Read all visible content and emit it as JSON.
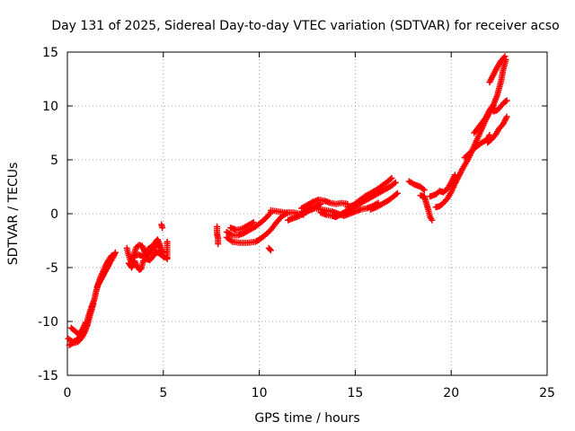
{
  "chart_data": {
    "type": "scatter",
    "title": "Day 131 of 2025, Sidereal Day-to-day VTEC variation (SDTVAR) for receiver acso",
    "xlabel": "GPS time / hours",
    "ylabel": "SDTVAR / TECUs",
    "xlim": [
      0,
      25
    ],
    "ylim": [
      -15,
      15
    ],
    "xticks": [
      0,
      5,
      10,
      15,
      20,
      25
    ],
    "yticks": [
      -15,
      -10,
      -5,
      0,
      5,
      10,
      15
    ],
    "grid": true,
    "marker": "plus",
    "color": "#ff0000",
    "series": [
      {
        "name": "SDTVAR",
        "segments": [
          [
            [
              0.05,
              -11.6
            ],
            [
              0.3,
              -11.9
            ],
            [
              0.5,
              -11.7
            ],
            [
              0.7,
              -11.3
            ],
            [
              0.85,
              -10.8
            ],
            [
              1.0,
              -10.2
            ],
            [
              1.1,
              -9.5
            ],
            [
              1.25,
              -8.7
            ],
            [
              1.4,
              -8.0
            ],
            [
              1.5,
              -7.2
            ],
            [
              1.6,
              -6.6
            ],
            [
              1.75,
              -6.1
            ],
            [
              1.9,
              -5.6
            ],
            [
              2.05,
              -5.1
            ],
            [
              2.2,
              -4.6
            ],
            [
              2.4,
              -4.0
            ],
            [
              2.5,
              -3.6
            ]
          ],
          [
            [
              0.1,
              -12.2
            ],
            [
              0.3,
              -12.0
            ],
            [
              0.55,
              -11.9
            ],
            [
              0.75,
              -11.5
            ],
            [
              0.9,
              -11.0
            ],
            [
              1.05,
              -10.3
            ],
            [
              1.2,
              -9.3
            ],
            [
              1.35,
              -8.4
            ]
          ],
          [
            [
              0.2,
              -10.6
            ],
            [
              0.4,
              -10.9
            ],
            [
              0.6,
              -11.2
            ],
            [
              0.8,
              -10.7
            ],
            [
              0.95,
              -10.1
            ]
          ],
          [
            [
              1.55,
              -6.8
            ],
            [
              1.7,
              -6.0
            ],
            [
              1.85,
              -5.4
            ],
            [
              2.0,
              -4.8
            ],
            [
              2.15,
              -4.3
            ],
            [
              2.3,
              -3.9
            ]
          ],
          [
            [
              3.1,
              -3.2
            ],
            [
              3.2,
              -3.9
            ],
            [
              3.3,
              -4.4
            ],
            [
              3.4,
              -4.1
            ],
            [
              3.5,
              -3.6
            ],
            [
              3.6,
              -3.1
            ],
            [
              3.75,
              -2.9
            ],
            [
              3.9,
              -3.0
            ],
            [
              4.0,
              -3.4
            ],
            [
              4.15,
              -3.9
            ],
            [
              4.3,
              -3.6
            ],
            [
              4.5,
              -3.1
            ],
            [
              4.6,
              -2.6
            ],
            [
              4.7,
              -2.4
            ],
            [
              4.8,
              -2.8
            ],
            [
              4.9,
              -3.4
            ],
            [
              5.0,
              -3.6
            ]
          ],
          [
            [
              3.2,
              -4.6
            ],
            [
              3.35,
              -5.0
            ],
            [
              3.5,
              -4.4
            ],
            [
              3.6,
              -4.8
            ],
            [
              3.75,
              -5.2
            ],
            [
              3.85,
              -5.1
            ],
            [
              3.95,
              -4.4
            ],
            [
              4.1,
              -4.2
            ],
            [
              4.3,
              -4.3
            ],
            [
              4.5,
              -3.9
            ],
            [
              4.6,
              -3.5
            ],
            [
              4.8,
              -3.7
            ],
            [
              5.0,
              -4.0
            ],
            [
              5.2,
              -4.1
            ]
          ],
          [
            [
              3.4,
              -4.0
            ],
            [
              3.7,
              -3.8
            ],
            [
              4.0,
              -4.0
            ],
            [
              4.2,
              -3.3
            ],
            [
              4.4,
              -3.0
            ],
            [
              4.6,
              -2.9
            ],
            [
              4.85,
              -3.1
            ]
          ],
          [
            [
              4.9,
              -1.0
            ],
            [
              4.95,
              -1.3
            ]
          ],
          [
            [
              5.2,
              -2.6
            ],
            [
              5.2,
              -3.3
            ],
            [
              5.2,
              -4.2
            ]
          ],
          [
            [
              7.8,
              -1.2
            ],
            [
              7.8,
              -1.9
            ],
            [
              7.85,
              -2.3
            ],
            [
              7.85,
              -2.8
            ]
          ],
          [
            [
              8.3,
              -2.2
            ],
            [
              8.6,
              -2.6
            ],
            [
              9.0,
              -2.7
            ],
            [
              9.4,
              -2.7
            ],
            [
              9.8,
              -2.6
            ],
            [
              10.0,
              -2.4
            ],
            [
              10.3,
              -2.0
            ],
            [
              10.6,
              -1.5
            ],
            [
              10.9,
              -0.8
            ],
            [
              11.2,
              -0.2
            ],
            [
              11.5,
              0.1
            ]
          ],
          [
            [
              8.3,
              -1.7
            ],
            [
              8.6,
              -2.0
            ],
            [
              8.9,
              -2.0
            ],
            [
              9.2,
              -1.8
            ],
            [
              9.5,
              -1.5
            ],
            [
              9.8,
              -1.2
            ],
            [
              10.1,
              -0.8
            ],
            [
              10.4,
              -0.3
            ],
            [
              10.6,
              0.1
            ]
          ],
          [
            [
              8.5,
              -1.3
            ],
            [
              8.8,
              -1.5
            ],
            [
              9.1,
              -1.4
            ],
            [
              9.4,
              -1.1
            ],
            [
              9.7,
              -0.8
            ]
          ],
          [
            [
              10.5,
              -3.2
            ],
            [
              10.6,
              -3.4
            ]
          ],
          [
            [
              10.6,
              0.3
            ],
            [
              11.0,
              0.2
            ],
            [
              11.4,
              0.1
            ],
            [
              11.8,
              0.1
            ],
            [
              12.1,
              0.0
            ],
            [
              12.3,
              -0.1
            ]
          ],
          [
            [
              11.5,
              -0.6
            ],
            [
              11.8,
              -0.4
            ],
            [
              12.1,
              -0.2
            ],
            [
              12.4,
              0.2
            ],
            [
              12.7,
              0.5
            ],
            [
              13.0,
              0.7
            ],
            [
              13.2,
              0.9
            ]
          ],
          [
            [
              12.2,
              0.5
            ],
            [
              12.5,
              0.8
            ],
            [
              12.8,
              1.1
            ],
            [
              13.1,
              1.3
            ],
            [
              13.4,
              1.2
            ],
            [
              13.7,
              1.0
            ],
            [
              14.0,
              0.9
            ],
            [
              14.3,
              1.0
            ],
            [
              14.6,
              0.9
            ]
          ],
          [
            [
              12.3,
              0.0
            ],
            [
              12.6,
              0.3
            ],
            [
              12.9,
              0.5
            ],
            [
              13.2,
              0.4
            ],
            [
              13.5,
              0.3
            ],
            [
              13.8,
              0.2
            ],
            [
              14.1,
              0.0
            ],
            [
              14.4,
              -0.2
            ],
            [
              14.7,
              0.0
            ],
            [
              15.0,
              0.2
            ],
            [
              15.3,
              0.4
            ],
            [
              15.6,
              0.5
            ],
            [
              15.9,
              0.7
            ],
            [
              16.2,
              1.0
            ]
          ],
          [
            [
              13.2,
              0.1
            ],
            [
              13.5,
              -0.1
            ],
            [
              13.8,
              -0.2
            ],
            [
              14.0,
              -0.3
            ],
            [
              14.2,
              -0.1
            ],
            [
              14.5,
              0.2
            ],
            [
              14.8,
              0.5
            ],
            [
              15.1,
              0.8
            ],
            [
              15.4,
              1.1
            ],
            [
              15.7,
              1.4
            ],
            [
              16.0,
              1.7
            ],
            [
              16.3,
              2.0
            ],
            [
              16.6,
              2.3
            ],
            [
              16.9,
              2.6
            ],
            [
              17.1,
              2.9
            ]
          ],
          [
            [
              14.6,
              0.6
            ],
            [
              14.9,
              0.8
            ],
            [
              15.2,
              1.2
            ],
            [
              15.5,
              1.6
            ],
            [
              15.8,
              1.9
            ],
            [
              16.1,
              2.2
            ],
            [
              16.4,
              2.6
            ],
            [
              16.7,
              3.0
            ],
            [
              16.9,
              3.3
            ]
          ],
          [
            [
              15.8,
              0.4
            ],
            [
              16.1,
              0.6
            ],
            [
              16.4,
              0.9
            ],
            [
              16.7,
              1.2
            ],
            [
              17.0,
              1.6
            ],
            [
              17.2,
              1.9
            ]
          ],
          [
            [
              17.8,
              3.0
            ],
            [
              18.1,
              2.7
            ],
            [
              18.4,
              2.5
            ],
            [
              18.6,
              2.2
            ]
          ],
          [
            [
              18.4,
              1.7
            ],
            [
              18.6,
              1.6
            ],
            [
              18.7,
              1.0
            ],
            [
              18.8,
              0.4
            ],
            [
              18.9,
              -0.3
            ],
            [
              19.0,
              -0.6
            ]
          ],
          [
            [
              18.9,
              1.6
            ],
            [
              19.2,
              1.8
            ],
            [
              19.4,
              2.1
            ],
            [
              19.6,
              2.0
            ],
            [
              19.8,
              2.3
            ],
            [
              20.0,
              2.9
            ],
            [
              20.2,
              3.6
            ]
          ],
          [
            [
              19.2,
              0.6
            ],
            [
              19.4,
              0.7
            ],
            [
              19.6,
              1.0
            ],
            [
              19.8,
              1.4
            ],
            [
              20.0,
              2.0
            ],
            [
              20.2,
              2.8
            ],
            [
              20.4,
              3.5
            ],
            [
              20.6,
              4.2
            ],
            [
              20.8,
              4.8
            ],
            [
              21.0,
              5.5
            ],
            [
              21.2,
              6.3
            ],
            [
              21.4,
              7.1
            ],
            [
              21.6,
              7.9
            ],
            [
              21.8,
              8.7
            ],
            [
              22.0,
              9.4
            ],
            [
              22.2,
              10.0
            ]
          ],
          [
            [
              20.7,
              5.2
            ],
            [
              21.0,
              5.7
            ],
            [
              21.3,
              6.2
            ],
            [
              21.6,
              6.6
            ],
            [
              21.9,
              6.9
            ],
            [
              22.0,
              7.3
            ]
          ],
          [
            [
              21.2,
              7.5
            ],
            [
              21.5,
              8.2
            ],
            [
              21.8,
              8.9
            ],
            [
              22.0,
              9.6
            ],
            [
              22.2,
              10.1
            ],
            [
              22.4,
              11.0
            ],
            [
              22.6,
              12.3
            ],
            [
              22.7,
              13.3
            ],
            [
              22.85,
              14.3
            ]
          ],
          [
            [
              21.9,
              6.6
            ],
            [
              22.1,
              6.9
            ],
            [
              22.3,
              7.3
            ],
            [
              22.5,
              7.9
            ],
            [
              22.7,
              8.3
            ],
            [
              22.9,
              9.0
            ]
          ],
          [
            [
              22.2,
              9.5
            ],
            [
              22.4,
              9.6
            ],
            [
              22.6,
              10.0
            ],
            [
              22.8,
              10.4
            ],
            [
              22.9,
              10.5
            ]
          ],
          [
            [
              22.0,
              12.2
            ],
            [
              22.2,
              12.9
            ],
            [
              22.4,
              13.6
            ],
            [
              22.6,
              14.2
            ],
            [
              22.8,
              14.6
            ]
          ]
        ]
      }
    ]
  }
}
